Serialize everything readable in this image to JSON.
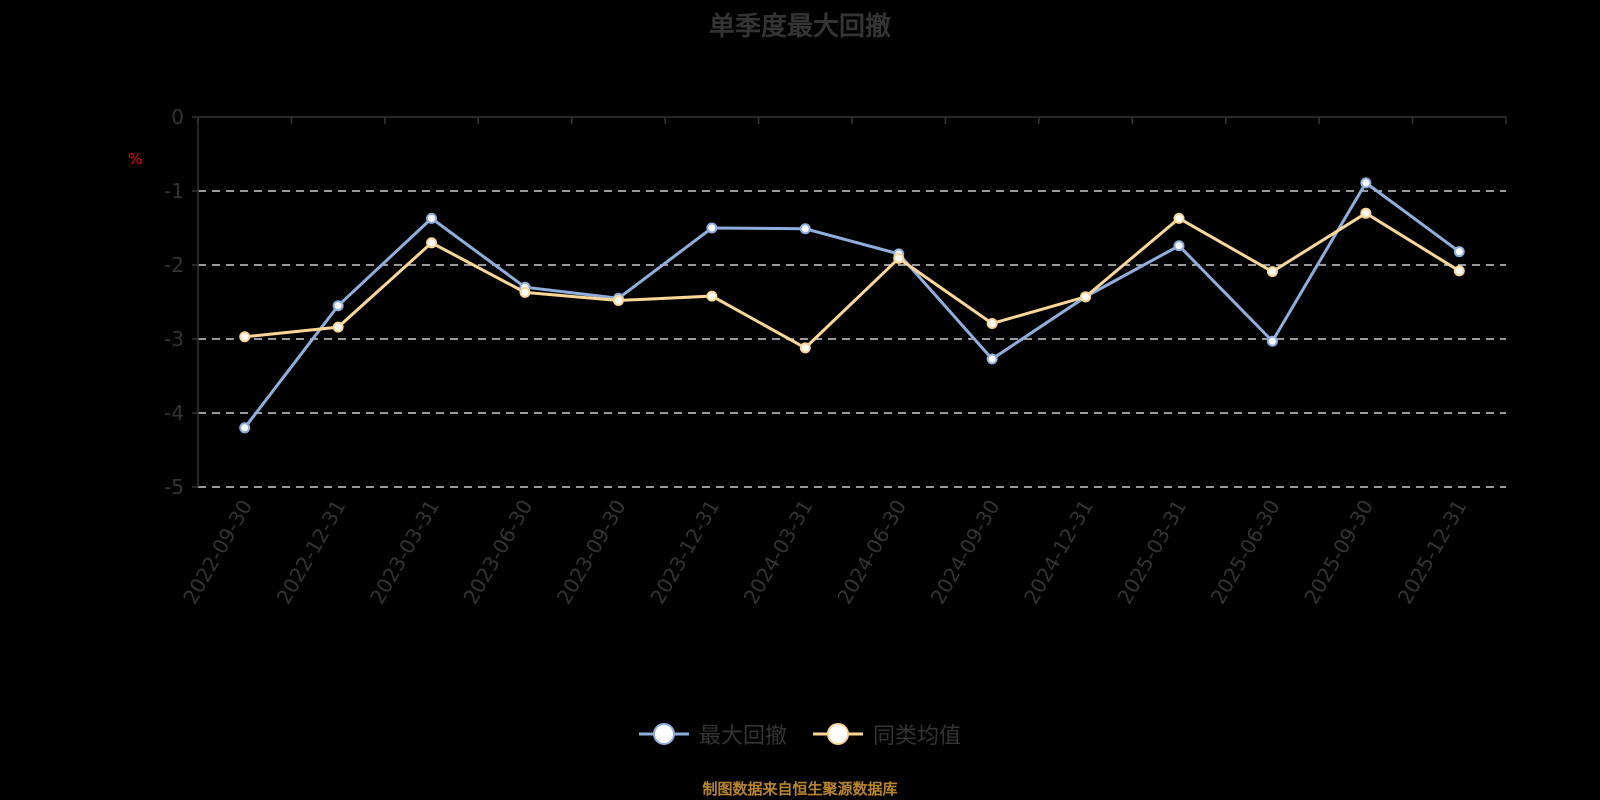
{
  "title": "单季度最大回撤",
  "y_unit": "%",
  "legend": [
    {
      "label": "最大回撤",
      "color": "#8eafde"
    },
    {
      "label": "同类均值",
      "color": "#fcd694"
    }
  ],
  "footer": "制图数据来自恒生聚源数据库",
  "chart_data": {
    "type": "line",
    "title": "单季度最大回撤",
    "xlabel": "",
    "ylabel": "%",
    "ylim": [
      -5,
      0
    ],
    "yticks": [
      0,
      -1,
      -2,
      -3,
      -4,
      -5
    ],
    "grid": true,
    "legend_position": "bottom",
    "categories": [
      "2022-09-30",
      "2022-12-31",
      "2023-03-31",
      "2023-06-30",
      "2023-09-30",
      "2023-12-31",
      "2024-03-31",
      "2024-06-30",
      "2024-09-30",
      "2024-12-31",
      "2025-03-31",
      "2025-06-30",
      "2025-09-30",
      "2025-12-31"
    ],
    "series": [
      {
        "name": "最大回撤",
        "color": "#8eafde",
        "values": [
          -4.2,
          -2.55,
          -1.37,
          -2.3,
          -2.45,
          -1.5,
          -1.51,
          -1.85,
          -3.27,
          -2.43,
          -1.74,
          -3.03,
          -0.89,
          -1.82
        ]
      },
      {
        "name": "同类均值",
        "color": "#fcd694",
        "values": [
          -2.97,
          -2.84,
          -1.7,
          -2.37,
          -2.48,
          -2.42,
          -3.12,
          -1.91,
          -2.79,
          -2.43,
          -1.37,
          -2.09,
          -1.3,
          -2.08
        ]
      }
    ]
  }
}
